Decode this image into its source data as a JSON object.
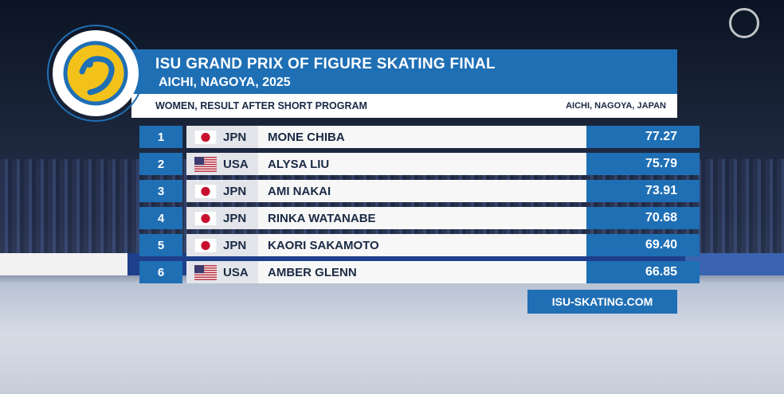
{
  "header": {
    "title": "ISU GRAND PRIX OF FIGURE SKATING FINAL",
    "subtitle": "AICHI, NAGOYA, 2025"
  },
  "subheader": {
    "event": "WOMEN, RESULT AFTER SHORT PROGRAM",
    "location": "AICHI, NAGOYA, JAPAN"
  },
  "table": {
    "rows": [
      {
        "rank": 1,
        "nation": "JPN",
        "name": "MONE CHIBA",
        "score": "77.27"
      },
      {
        "rank": 2,
        "nation": "USA",
        "name": "ALYSA LIU",
        "score": "75.79"
      },
      {
        "rank": 3,
        "nation": "JPN",
        "name": "AMI NAKAI",
        "score": "73.91"
      },
      {
        "rank": 4,
        "nation": "JPN",
        "name": "RINKA WATANABE",
        "score": "70.68"
      },
      {
        "rank": 5,
        "nation": "JPN",
        "name": "KAORI SAKAMOTO",
        "score": "69.40"
      },
      {
        "rank": 6,
        "nation": "USA",
        "name": "AMBER GLENN",
        "score": "66.85"
      }
    ]
  },
  "footer": {
    "url": "ISU-SKATING.COM"
  }
}
